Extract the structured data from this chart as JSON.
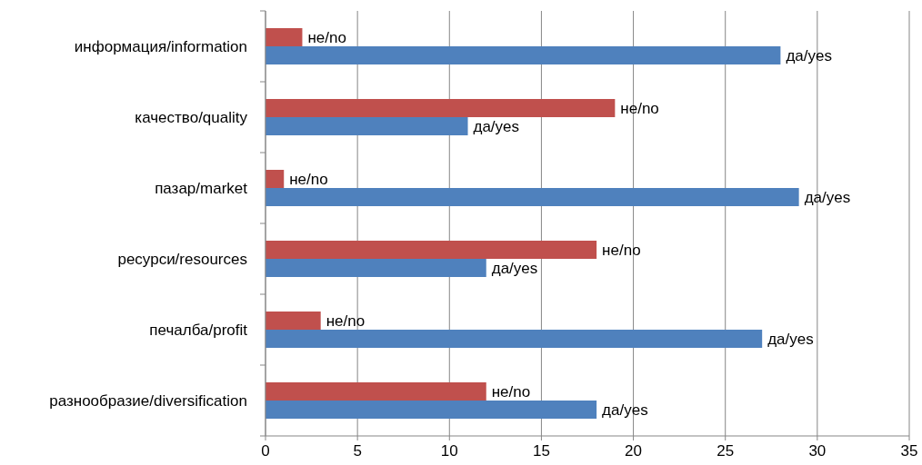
{
  "chart_data": {
    "type": "bar",
    "orientation": "horizontal",
    "categories": [
      "информация/information",
      "качество/quality",
      "пазар/market",
      "ресурси/resources",
      "печалба/profit",
      "разнообразие/diversification"
    ],
    "series": [
      {
        "name": "не/no",
        "color": "#c0504d",
        "values": [
          2,
          19,
          1,
          18,
          3,
          12
        ]
      },
      {
        "name": "да/yes",
        "color": "#4f81bd",
        "values": [
          28,
          11,
          29,
          12,
          27,
          18
        ]
      }
    ],
    "xlim": [
      0,
      35
    ],
    "xticks": [
      0,
      5,
      10,
      15,
      20,
      25,
      30,
      35
    ],
    "grid": "x"
  }
}
